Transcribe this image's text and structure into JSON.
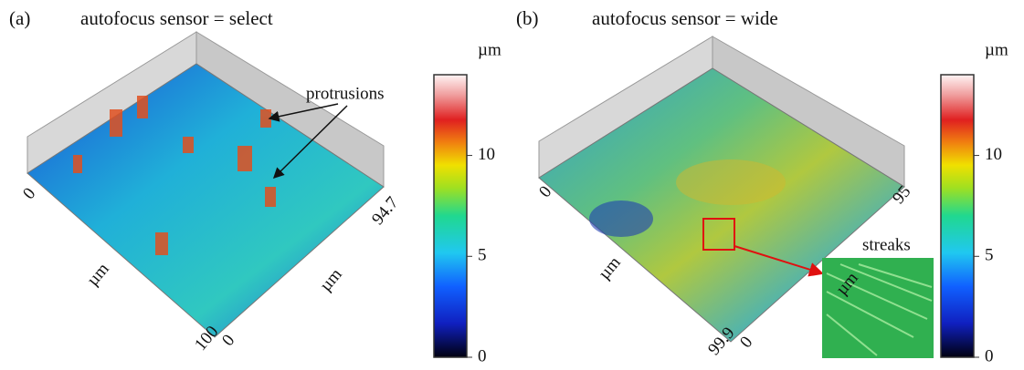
{
  "panels": [
    {
      "label": "(a)",
      "title": "autofocus sensor = select",
      "axis_labels": {
        "x_start": "0",
        "x_end": "100",
        "x_unit": "µm",
        "y_start": "0",
        "y_end": "94.7",
        "y_unit": "µm"
      },
      "annotation": "protrusions",
      "colorbar": {
        "unit": "µm",
        "range": [
          0,
          14
        ],
        "ticks": [
          0,
          5,
          10
        ]
      }
    },
    {
      "label": "(b)",
      "title": "autofocus sensor = wide",
      "axis_labels": {
        "x_start": "0",
        "x_end": "99.9",
        "x_unit": "µm",
        "y_start": "0",
        "y_end": "95",
        "y_unit": "µm"
      },
      "annotation": "streaks",
      "colorbar": {
        "unit": "µm",
        "range": [
          0,
          14
        ],
        "ticks": [
          0,
          5,
          10
        ]
      }
    }
  ]
}
